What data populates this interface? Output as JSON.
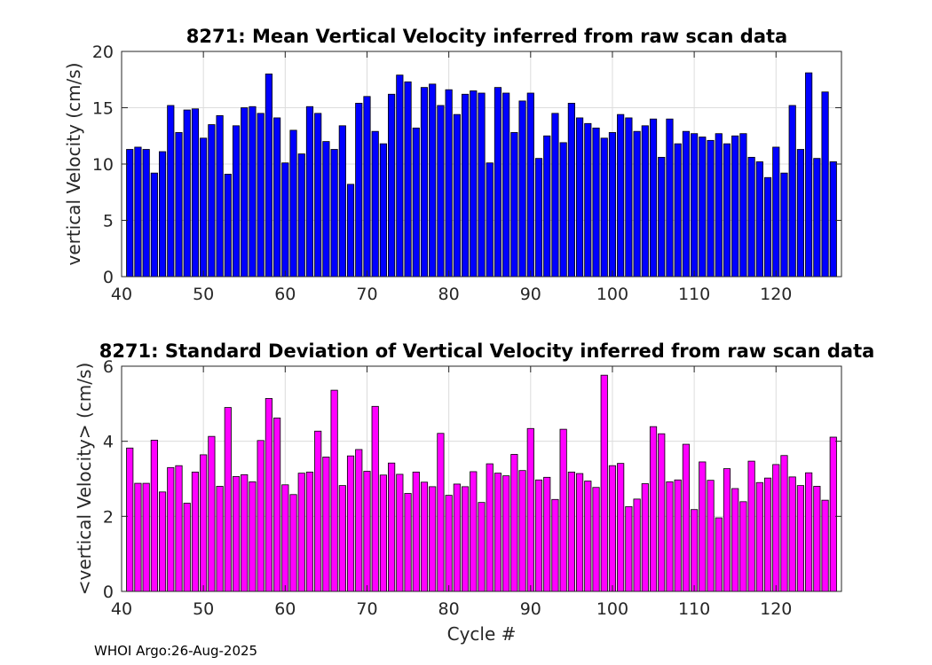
{
  "chart_data": [
    {
      "type": "bar",
      "title": "8271: Mean Vertical Velocity inferred from raw scan data",
      "xlabel": "",
      "ylabel": "vertical Velocity (cm/s)",
      "xlim": [
        40,
        128
      ],
      "ylim": [
        0,
        20
      ],
      "xticks": [
        40,
        50,
        60,
        70,
        80,
        90,
        100,
        110,
        120
      ],
      "yticks": [
        0,
        5,
        10,
        15,
        20
      ],
      "color": "#0000ff",
      "grid": true,
      "x": [
        41,
        42,
        43,
        44,
        45,
        46,
        47,
        48,
        49,
        50,
        51,
        52,
        53,
        54,
        55,
        56,
        57,
        58,
        59,
        60,
        61,
        62,
        63,
        64,
        65,
        66,
        67,
        68,
        69,
        70,
        71,
        72,
        73,
        74,
        75,
        76,
        77,
        78,
        79,
        80,
        81,
        82,
        83,
        84,
        85,
        86,
        87,
        88,
        89,
        90,
        91,
        92,
        93,
        94,
        95,
        96,
        97,
        98,
        99,
        100,
        101,
        102,
        103,
        104,
        105,
        106,
        107,
        108,
        109,
        110,
        111,
        112,
        113,
        114,
        115,
        116,
        117,
        118,
        119,
        120,
        121,
        122,
        123,
        124,
        125,
        126,
        127
      ],
      "values": [
        11.3,
        11.5,
        11.3,
        9.2,
        11.1,
        15.2,
        12.8,
        14.8,
        14.9,
        12.3,
        13.5,
        14.3,
        9.1,
        13.4,
        15.0,
        15.1,
        14.5,
        18.0,
        14.1,
        10.1,
        13.0,
        10.9,
        15.1,
        14.5,
        12.0,
        11.3,
        13.4,
        8.2,
        15.4,
        16.0,
        12.9,
        11.8,
        16.2,
        17.9,
        17.3,
        13.2,
        16.8,
        17.1,
        15.2,
        16.6,
        14.4,
        16.2,
        16.5,
        16.3,
        10.1,
        16.8,
        16.3,
        12.8,
        15.6,
        16.3,
        10.5,
        12.5,
        14.5,
        11.9,
        15.4,
        14.1,
        13.6,
        13.2,
        12.3,
        12.8,
        14.4,
        14.1,
        12.9,
        13.4,
        14.0,
        10.6,
        14.0,
        11.8,
        12.9,
        12.7,
        12.4,
        12.1,
        12.7,
        11.8,
        12.5,
        12.7,
        10.6,
        10.2,
        8.8,
        11.5,
        9.2,
        15.2,
        11.3,
        18.1,
        10.5,
        16.4,
        10.2
      ]
    },
    {
      "type": "bar",
      "title": "8271: Standard Deviation of Vertical Velocity inferred from raw scan data",
      "xlabel": "Cycle #",
      "ylabel": "<vertical Velocity> (cm/s)",
      "xlim": [
        40,
        128
      ],
      "ylim": [
        0,
        6
      ],
      "xticks": [
        40,
        50,
        60,
        70,
        80,
        90,
        100,
        110,
        120
      ],
      "yticks": [
        0,
        2,
        4,
        6
      ],
      "color": "#ff00ff",
      "grid": true,
      "x": [
        41,
        42,
        43,
        44,
        45,
        46,
        47,
        48,
        49,
        50,
        51,
        52,
        53,
        54,
        55,
        56,
        57,
        58,
        59,
        60,
        61,
        62,
        63,
        64,
        65,
        66,
        67,
        68,
        69,
        70,
        71,
        72,
        73,
        74,
        75,
        76,
        77,
        78,
        79,
        80,
        81,
        82,
        83,
        84,
        85,
        86,
        87,
        88,
        89,
        90,
        91,
        92,
        93,
        94,
        95,
        96,
        97,
        98,
        99,
        100,
        101,
        102,
        103,
        104,
        105,
        106,
        107,
        108,
        109,
        110,
        111,
        112,
        113,
        114,
        115,
        116,
        117,
        118,
        119,
        120,
        121,
        122,
        123,
        124,
        125,
        126,
        127
      ],
      "values": [
        3.82,
        2.88,
        2.88,
        4.03,
        2.65,
        3.3,
        3.35,
        2.35,
        3.18,
        3.64,
        4.13,
        2.8,
        4.9,
        3.06,
        3.11,
        2.92,
        4.02,
        5.14,
        4.62,
        2.84,
        2.58,
        3.15,
        3.18,
        4.27,
        3.58,
        5.36,
        2.82,
        3.61,
        3.78,
        3.2,
        4.93,
        3.1,
        3.42,
        3.12,
        2.61,
        3.18,
        2.91,
        2.79,
        4.21,
        2.56,
        2.86,
        2.79,
        3.19,
        2.37,
        3.4,
        3.15,
        3.08,
        3.65,
        3.22,
        4.34,
        2.97,
        3.04,
        2.45,
        4.32,
        3.18,
        3.14,
        2.94,
        2.77,
        5.76,
        3.35,
        3.41,
        2.26,
        2.46,
        2.87,
        4.39,
        4.2,
        2.92,
        2.97,
        3.92,
        2.18,
        3.45,
        2.96,
        1.96,
        3.27,
        2.74,
        2.39,
        3.47,
        2.9,
        3.02,
        3.38,
        3.62,
        3.05,
        2.82,
        3.16,
        2.8,
        2.43,
        4.11
      ]
    }
  ],
  "footer": "WHOI Argo:26-Aug-2025"
}
